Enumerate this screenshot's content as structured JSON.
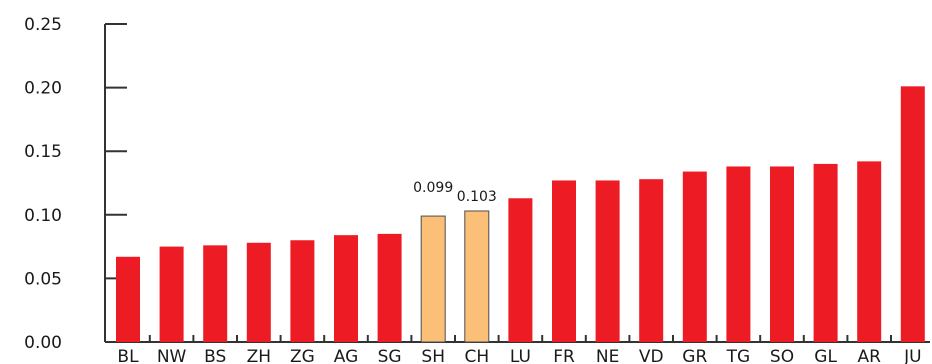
{
  "chart_data": {
    "type": "bar",
    "categories": [
      "BL",
      "NW",
      "BS",
      "ZH",
      "ZG",
      "AG",
      "SG",
      "SH",
      "CH",
      "LU",
      "FR",
      "NE",
      "VD",
      "GR",
      "TG",
      "SO",
      "GL",
      "AR",
      "JU"
    ],
    "values": [
      0.067,
      0.075,
      0.076,
      0.078,
      0.08,
      0.084,
      0.085,
      0.099,
      0.103,
      0.113,
      0.127,
      0.127,
      0.128,
      0.134,
      0.138,
      0.138,
      0.14,
      0.142,
      0.201
    ],
    "highlight": [
      "SH",
      "CH"
    ],
    "data_labels": [
      {
        "category": "SH",
        "text": "0.099"
      },
      {
        "category": "CH",
        "text": "0.103"
      }
    ],
    "y_ticks": [
      "0.00",
      "0.05",
      "0.10",
      "0.15",
      "0.20",
      "0.25"
    ],
    "ylim": [
      0,
      0.25
    ],
    "grid": false,
    "colors": {
      "bar": "#ed1c24",
      "highlight": "#fbbf77",
      "bar_stroke": "#4d4d4d",
      "axis": "#333333"
    }
  }
}
